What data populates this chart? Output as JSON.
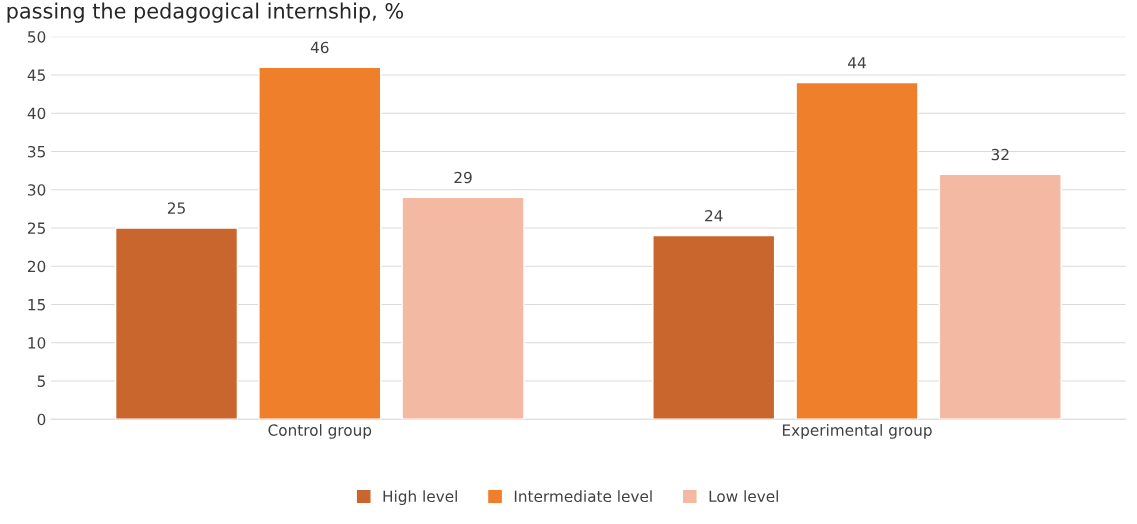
{
  "chart_data": {
    "type": "bar",
    "title": "passing the pedagogical internship, %",
    "categories": [
      "Control group",
      "Experimental group"
    ],
    "series": [
      {
        "name": "High level",
        "color": "#c8662e",
        "values": [
          25,
          24
        ]
      },
      {
        "name": "Intermediate level",
        "color": "#f07f2c",
        "values": [
          46,
          44
        ]
      },
      {
        "name": "Low level",
        "color": "#f4b9a2",
        "values": [
          29,
          32
        ]
      }
    ],
    "ylim": [
      0,
      50
    ],
    "yticks": [
      0,
      5,
      10,
      15,
      20,
      25,
      30,
      35,
      40,
      45,
      50
    ],
    "grid": "y",
    "legend": "bottom",
    "data_labels": true
  }
}
